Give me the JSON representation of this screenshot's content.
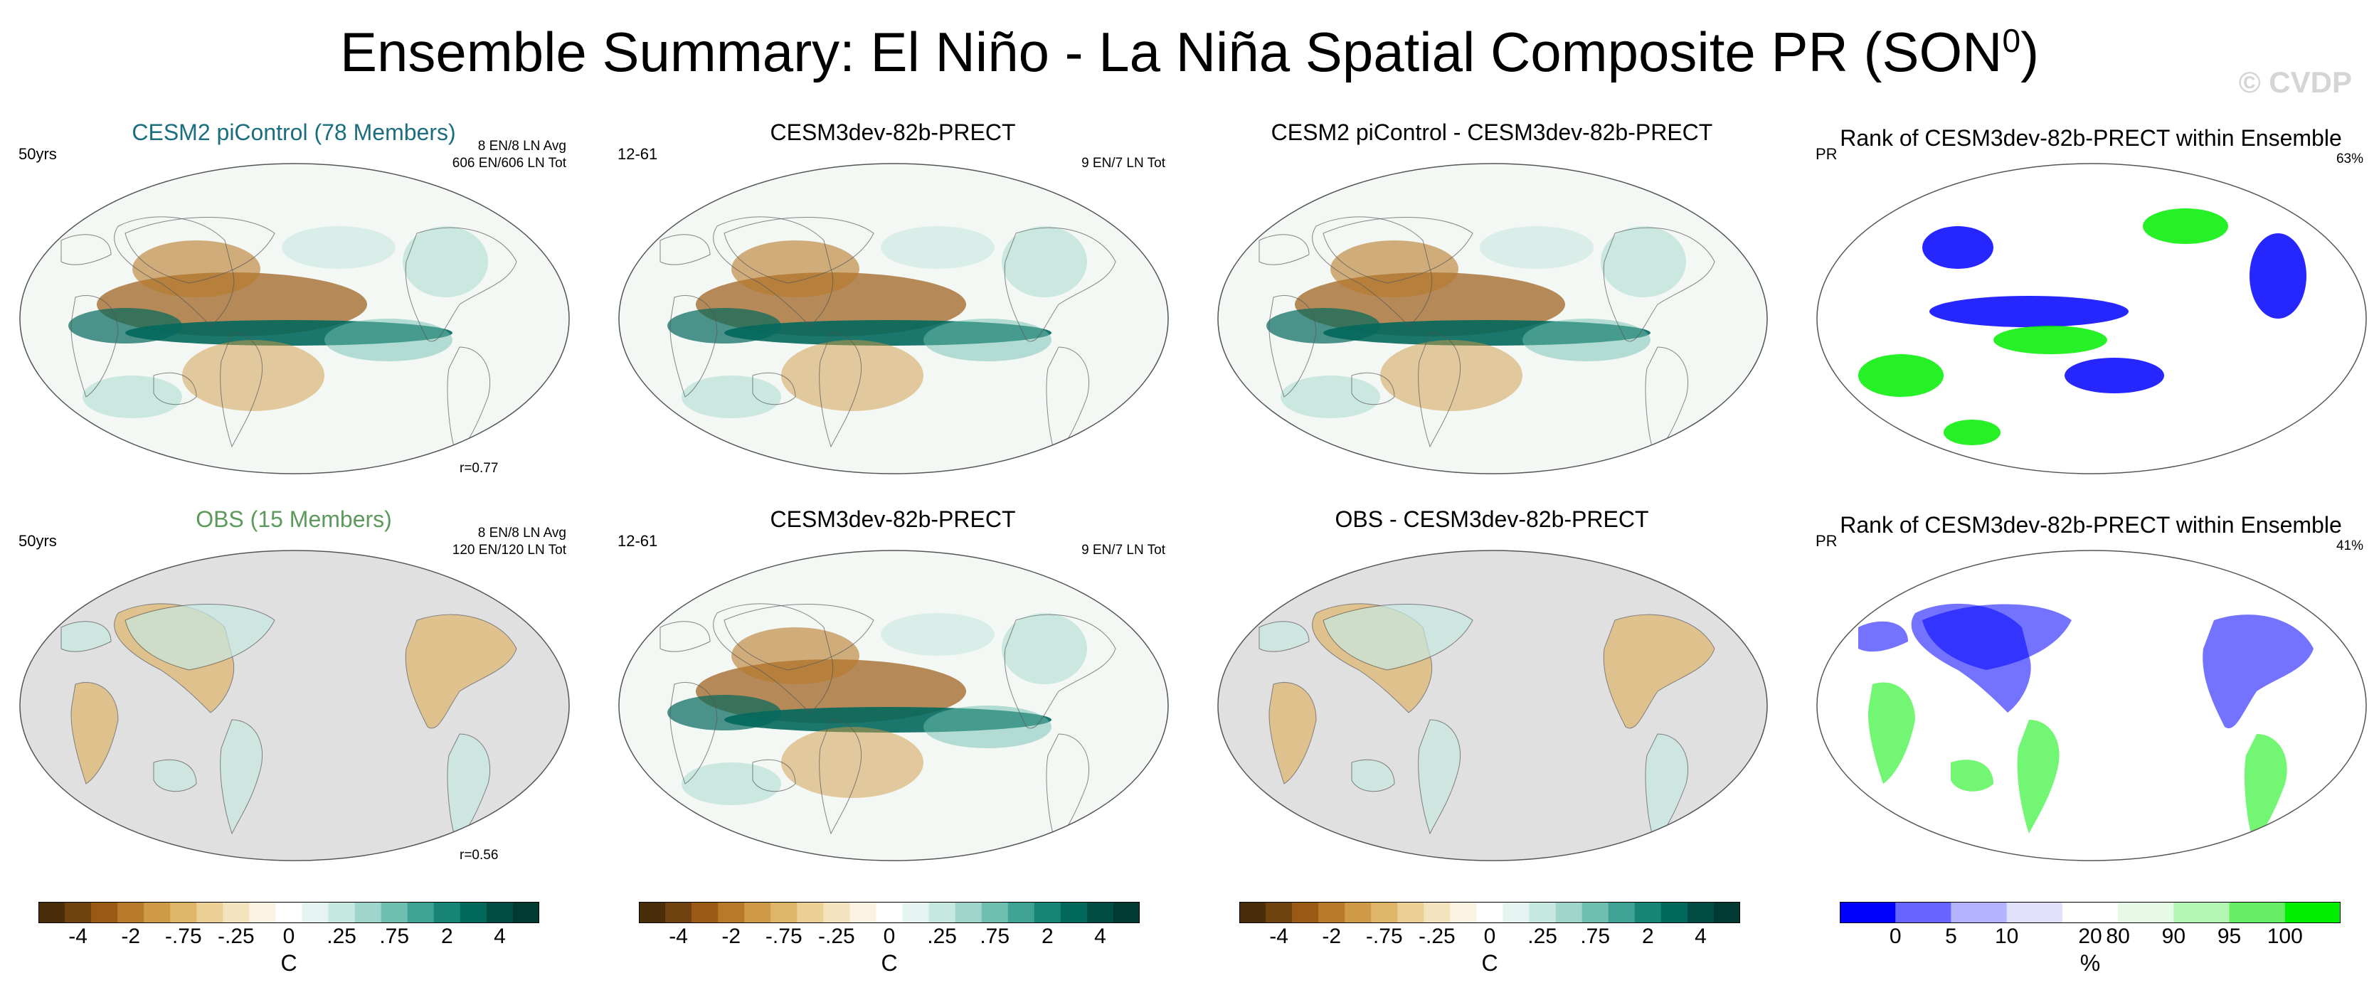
{
  "title": "Ensemble Summary: El Niño - La Niña Spatial Composite PR (SON",
  "title_sup": "0",
  "title_close": ")",
  "watermark": "© CVDP",
  "panels": [
    {
      "title": "CESM2 piControl (78 Members)",
      "left_label": "50yrs",
      "right_line1": "8 EN/8 LN Avg",
      "right_line2": "606 EN/606 LN Tot",
      "r_label": "r=0.77",
      "map_type": "diverging",
      "coverage": "global"
    },
    {
      "title": "CESM3dev-82b-PRECT",
      "left_label": "12-61",
      "right_line1": "9 EN/7 LN Tot",
      "map_type": "diverging",
      "coverage": "global"
    },
    {
      "title": "CESM2 piControl - CESM3dev-82b-PRECT",
      "map_type": "diverging",
      "coverage": "global"
    },
    {
      "title": "Rank of CESM3dev-82b-PRECT within Ensemble",
      "left_label": "PR",
      "right_line1": "63%",
      "map_type": "rank",
      "coverage": "global"
    },
    {
      "title": "OBS (15 Members)",
      "left_label": "50yrs",
      "right_line1": "8 EN/8 LN Avg",
      "right_line2": "120 EN/120 LN Tot",
      "r_label": "r=0.56",
      "map_type": "diverging",
      "coverage": "land"
    },
    {
      "title": "CESM3dev-82b-PRECT",
      "left_label": "12-61",
      "right_line1": "9 EN/7 LN Tot",
      "map_type": "diverging",
      "coverage": "global"
    },
    {
      "title": "OBS - CESM3dev-82b-PRECT",
      "map_type": "diverging",
      "coverage": "land"
    },
    {
      "title": "Rank of CESM3dev-82b-PRECT within Ensemble",
      "left_label": "PR",
      "right_line1": "41%",
      "map_type": "rank",
      "coverage": "land"
    }
  ],
  "colorbars": {
    "diverging": {
      "colors": [
        "#4a2e0a",
        "#70420f",
        "#9a5a16",
        "#b87a2a",
        "#cf9a45",
        "#dfb56a",
        "#ead095",
        "#f3e4bf",
        "#fbf3e2",
        "#ffffff",
        "#e6f4f1",
        "#c7e8e1",
        "#9fd6cb",
        "#6fbfb1",
        "#3fa294",
        "#168477",
        "#03685c",
        "#014d44",
        "#013a33"
      ],
      "tick_labels": [
        "-4",
        "-2",
        "-.75",
        "-.25",
        "0",
        ".25",
        ".75",
        "2",
        "4"
      ],
      "unit": "C"
    },
    "rank": {
      "colors": [
        "#0000ff",
        "#6666ff",
        "#b3b3ff",
        "#e0e0fa",
        "#ffffff",
        "#e6fae6",
        "#b3f5b3",
        "#66ee66",
        "#00ee00"
      ],
      "tick_labels": [
        "0",
        "5",
        "10",
        "20",
        "80",
        "90",
        "95",
        "100"
      ],
      "unit": "%"
    }
  }
}
